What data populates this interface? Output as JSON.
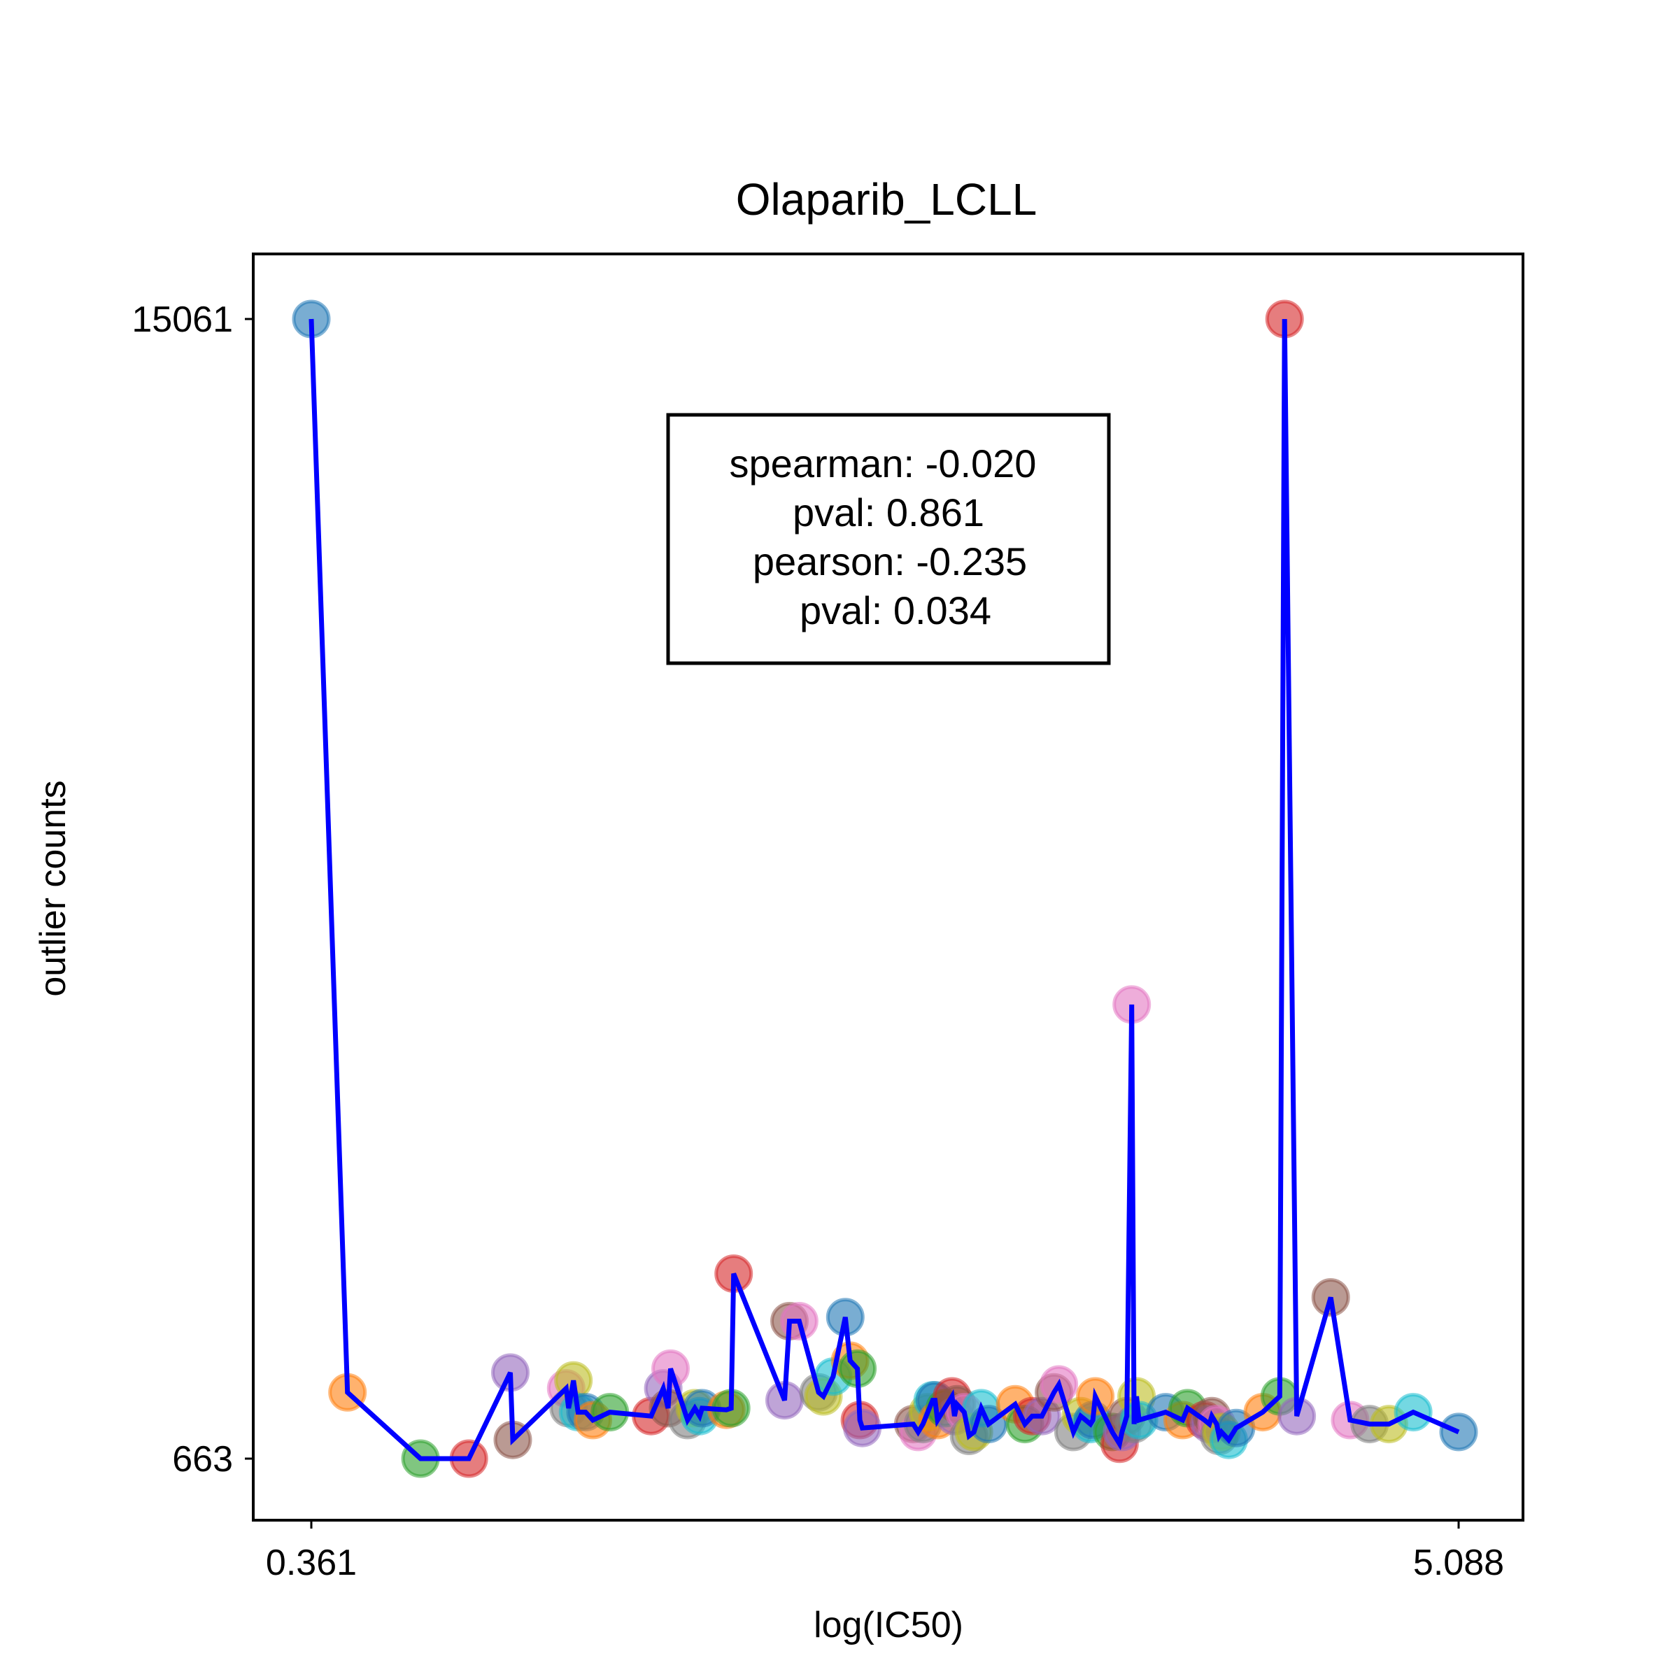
{
  "chart_data": {
    "type": "scatter",
    "title": "Olaparib_LCLL",
    "xlabel": "log(IC50)",
    "ylabel": "outlier counts",
    "xlim": [
      0.361,
      5.088
    ],
    "ylim": [
      663,
      15061
    ],
    "xticks": [
      "0.361",
      "5.088"
    ],
    "yticks": [
      "663",
      "15061"
    ],
    "grid": false,
    "stats": [
      "spearman: -0.020",
      "pval: 0.861",
      "pearson: -0.235",
      "pval: 0.034"
    ],
    "line_color": "#0000ff",
    "marker_colors": [
      "#1f77b4",
      "#ff7f0e",
      "#2ca02c",
      "#d62728",
      "#9467bd",
      "#8c564b",
      "#e377c2",
      "#7f7f7f",
      "#bcbd22",
      "#17becf"
    ],
    "series": [
      {
        "x": [
          0.361,
          0.51,
          0.811,
          1.01,
          1.181,
          1.191,
          1.411,
          1.421,
          1.441,
          1.46,
          1.491,
          1.521,
          1.591,
          1.761,
          1.811,
          1.831,
          1.841,
          1.911,
          1.941,
          1.961,
          1.971,
          2.071,
          2.091,
          2.101,
          2.311,
          2.331,
          2.371,
          2.451,
          2.471,
          2.511,
          2.561,
          2.581,
          2.611,
          2.621,
          2.631,
          2.841,
          2.861,
          2.881,
          2.901,
          2.921,
          2.931,
          2.941,
          2.971,
          3.001,
          3.011,
          3.021,
          3.051,
          3.071,
          3.091,
          3.121,
          3.151,
          3.261,
          3.301,
          3.331,
          3.371,
          3.421,
          3.441,
          3.501,
          3.531,
          3.571,
          3.581,
          3.591,
          3.661,
          3.691,
          3.701,
          3.721,
          3.741,
          3.751,
          3.761,
          3.771,
          3.881,
          3.951,
          3.971,
          4.041,
          4.061,
          4.071,
          4.091,
          4.101,
          4.111,
          4.141,
          4.171,
          4.281,
          4.351,
          4.371,
          4.421,
          4.561,
          4.641,
          4.721,
          4.801,
          4.901,
          5.088
        ],
        "y": [
          15061,
          1500,
          663,
          663,
          1750,
          900,
          1550,
          1300,
          1650,
          1250,
          1250,
          1150,
          1250,
          1200,
          1550,
          1300,
          1800,
          1150,
          1300,
          1200,
          1300,
          1280,
          1300,
          3000,
          1400,
          2400,
          2400,
          1500,
          1450,
          1700,
          2450,
          1900,
          1800,
          1150,
          1050,
          1100,
          1000,
          1100,
          1250,
          1400,
          1400,
          1150,
          1300,
          1450,
          1200,
          1350,
          1250,
          950,
          1000,
          1300,
          1100,
          1350,
          1100,
          1200,
          1200,
          1500,
          1600,
          1000,
          1200,
          1100,
          1150,
          1450,
          1000,
          850,
          1000,
          1200,
          6400,
          1100,
          1450,
          1150,
          1250,
          1150,
          1300,
          1150,
          1100,
          1200,
          1100,
          950,
          1000,
          900,
          1050,
          1250,
          1450,
          15061,
          1200,
          2700,
          1150,
          1100,
          1100,
          1250,
          1000
        ]
      }
    ]
  }
}
